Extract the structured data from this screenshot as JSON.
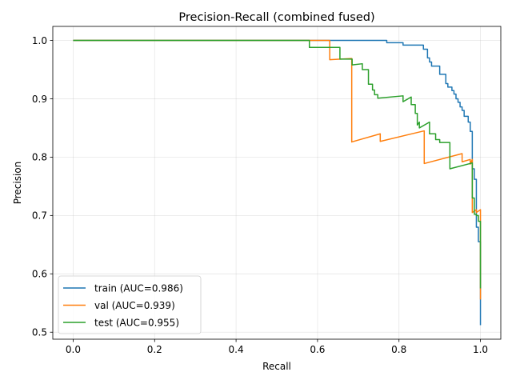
{
  "chart_data": {
    "type": "line",
    "title": "Precision-Recall (combined fused)",
    "xlabel": "Recall",
    "ylabel": "Precision",
    "xlim": [
      -0.05,
      1.05
    ],
    "ylim": [
      0.488,
      1.024
    ],
    "xticks": [
      0.0,
      0.2,
      0.4,
      0.6,
      0.8,
      1.0
    ],
    "xtick_labels": [
      "0.0",
      "0.2",
      "0.4",
      "0.6",
      "0.8",
      "1.0"
    ],
    "yticks": [
      0.5,
      0.6,
      0.7,
      0.8,
      0.9,
      1.0
    ],
    "ytick_labels": [
      "0.5",
      "0.6",
      "0.7",
      "0.8",
      "0.9",
      "1.0"
    ],
    "grid": true,
    "legend_position": "lower-left",
    "series": [
      {
        "name": "train (AUC=0.986)",
        "color": "#1f77b4",
        "x": [
          0.0,
          0.77,
          0.77,
          0.81,
          0.81,
          0.86,
          0.86,
          0.87,
          0.87,
          0.875,
          0.875,
          0.88,
          0.88,
          0.9,
          0.9,
          0.915,
          0.915,
          0.92,
          0.92,
          0.93,
          0.93,
          0.935,
          0.935,
          0.94,
          0.94,
          0.945,
          0.945,
          0.95,
          0.95,
          0.955,
          0.955,
          0.96,
          0.96,
          0.97,
          0.97,
          0.975,
          0.975,
          0.98,
          0.98,
          0.985,
          0.985,
          0.99,
          0.99,
          0.995,
          0.995,
          1.0,
          1.0
        ],
        "y": [
          1.0,
          1.0,
          0.996,
          0.996,
          0.992,
          0.992,
          0.985,
          0.985,
          0.97,
          0.97,
          0.963,
          0.963,
          0.956,
          0.956,
          0.942,
          0.942,
          0.926,
          0.926,
          0.92,
          0.92,
          0.914,
          0.914,
          0.908,
          0.908,
          0.9,
          0.9,
          0.894,
          0.894,
          0.886,
          0.886,
          0.88,
          0.88,
          0.87,
          0.87,
          0.86,
          0.86,
          0.844,
          0.844,
          0.78,
          0.78,
          0.762,
          0.762,
          0.68,
          0.68,
          0.655,
          0.655,
          0.512
        ]
      },
      {
        "name": "val (AUC=0.939)",
        "color": "#ff7f0e",
        "x": [
          0.0,
          0.63,
          0.63,
          0.684,
          0.684,
          0.754,
          0.754,
          0.862,
          0.862,
          0.955,
          0.955,
          0.975,
          0.975,
          0.98,
          0.98,
          0.99,
          0.99,
          1.0,
          1.0
        ],
        "y": [
          1.0,
          1.0,
          0.967,
          0.969,
          0.826,
          0.84,
          0.827,
          0.845,
          0.789,
          0.806,
          0.792,
          0.796,
          0.788,
          0.796,
          0.705,
          0.71,
          0.705,
          0.71,
          0.556
        ]
      },
      {
        "name": "test (AUC=0.955)",
        "color": "#2ca02c",
        "x": [
          0.0,
          0.58,
          0.58,
          0.655,
          0.655,
          0.685,
          0.685,
          0.71,
          0.71,
          0.725,
          0.725,
          0.735,
          0.735,
          0.74,
          0.74,
          0.748,
          0.748,
          0.81,
          0.81,
          0.83,
          0.83,
          0.84,
          0.84,
          0.845,
          0.845,
          0.85,
          0.85,
          0.875,
          0.875,
          0.89,
          0.89,
          0.9,
          0.9,
          0.925,
          0.925,
          0.98,
          0.98,
          0.985,
          0.985,
          0.99,
          0.99,
          0.995,
          0.995,
          1.0,
          1.0
        ],
        "y": [
          1.0,
          1.0,
          0.988,
          0.988,
          0.968,
          0.968,
          0.958,
          0.96,
          0.95,
          0.95,
          0.925,
          0.925,
          0.915,
          0.915,
          0.907,
          0.907,
          0.901,
          0.905,
          0.895,
          0.903,
          0.89,
          0.89,
          0.875,
          0.875,
          0.855,
          0.86,
          0.85,
          0.86,
          0.84,
          0.84,
          0.83,
          0.83,
          0.825,
          0.825,
          0.78,
          0.79,
          0.73,
          0.73,
          0.702,
          0.702,
          0.7,
          0.7,
          0.69,
          0.69,
          0.575
        ]
      }
    ]
  }
}
